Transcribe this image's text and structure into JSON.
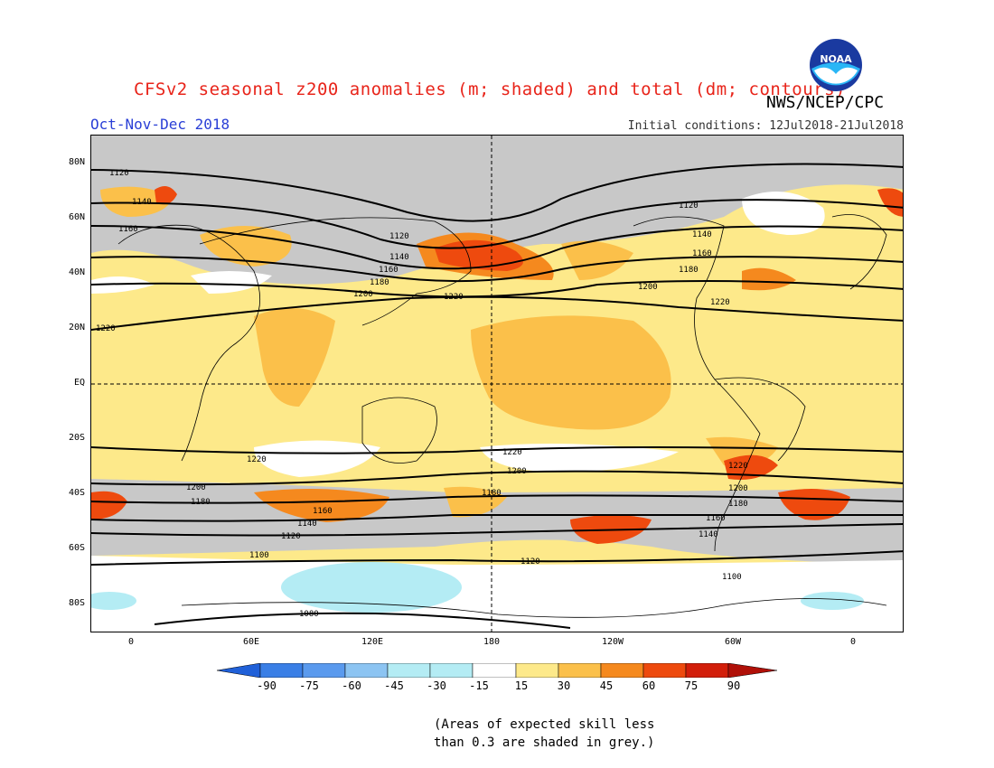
{
  "header": {
    "title": "CFSv2 seasonal z200 anomalies (m; shaded) and total (dm; contours)",
    "agency": "NWS/NCEP/CPC",
    "logo_text": "NOAA",
    "season": "Oct-Nov-Dec 2018",
    "initial_conditions": "Initial conditions: 12Jul2018-21Jul2018"
  },
  "map": {
    "lat_labels": [
      "80N",
      "60N",
      "40N",
      "20N",
      "EQ",
      "20S",
      "40S",
      "60S",
      "80S"
    ],
    "lon_labels": [
      "0",
      "60E",
      "120E",
      "180",
      "120W",
      "60W",
      "0"
    ],
    "contour_labels": [
      "1120",
      "1140",
      "1160",
      "1180",
      "1200",
      "1220",
      "1100",
      "1080"
    ],
    "grey_meaning": "low skill"
  },
  "colorbar": {
    "ticks": [
      "-90",
      "-75",
      "-60",
      "-45",
      "-30",
      "-15",
      "15",
      "30",
      "45",
      "60",
      "75",
      "90"
    ],
    "colors": [
      "#2060d8",
      "#3a7fe6",
      "#5a9aee",
      "#8cc4f2",
      "#b4ecf4",
      "#ffffff",
      "#fde98a",
      "#fbc04a",
      "#f5891e",
      "#ee4a0e",
      "#d21e0a"
    ]
  },
  "footnote": {
    "line1": "(Areas of expected skill less",
    "line2": "than 0.3 are shaded in grey.)"
  }
}
